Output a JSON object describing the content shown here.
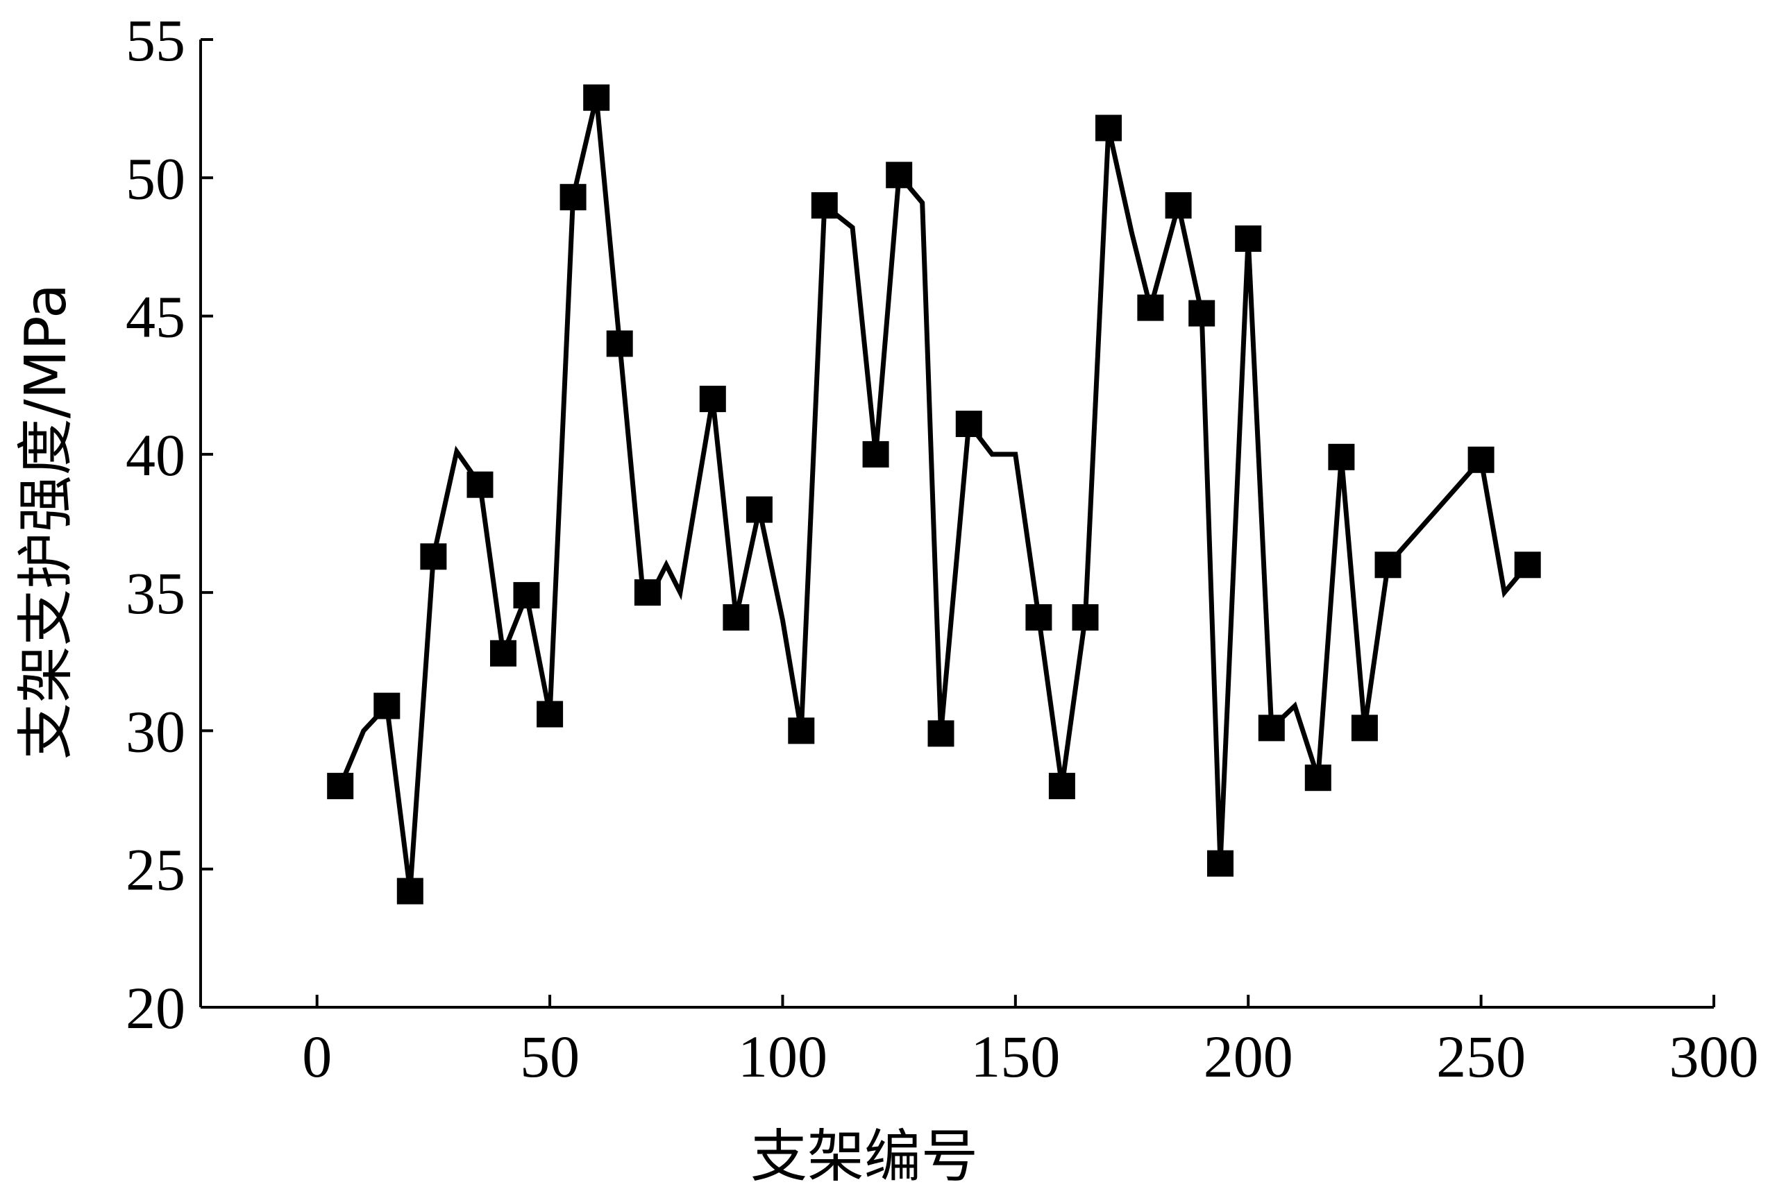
{
  "chart_data": {
    "type": "line",
    "xlabel": "支架编号",
    "ylabel": "支架支护强度/MPa",
    "xlim": [
      -25,
      300
    ],
    "ylim": [
      20,
      55
    ],
    "xticks": [
      0,
      50,
      100,
      150,
      200,
      250,
      300
    ],
    "yticks": [
      20,
      25,
      30,
      35,
      40,
      45,
      50,
      55
    ],
    "grid": false,
    "legend": "none",
    "color": "#000000",
    "series": [
      {
        "line": [
          [
            5,
            28
          ],
          [
            10,
            30
          ],
          [
            15,
            30.9
          ],
          [
            20,
            24.2
          ],
          [
            25,
            36.3
          ],
          [
            30,
            40.1
          ],
          [
            35,
            38.9
          ],
          [
            40,
            32.8
          ],
          [
            45,
            34.9
          ],
          [
            50,
            30.6
          ],
          [
            55,
            49.3
          ],
          [
            60,
            52.9
          ],
          [
            65,
            44
          ],
          [
            70,
            35
          ],
          [
            72,
            35
          ],
          [
            75,
            36
          ],
          [
            78,
            35
          ],
          [
            85,
            42
          ],
          [
            90,
            34.1
          ],
          [
            95,
            38
          ],
          [
            100,
            34
          ],
          [
            104,
            30
          ],
          [
            109,
            49
          ],
          [
            115,
            48.2
          ],
          [
            120,
            40
          ],
          [
            125,
            50.1
          ],
          [
            130,
            49.1
          ],
          [
            134,
            29.9
          ],
          [
            140,
            41.1
          ],
          [
            145,
            40
          ],
          [
            150,
            40
          ],
          [
            155,
            34.1
          ],
          [
            160,
            28
          ],
          [
            165,
            34.1
          ],
          [
            170,
            51.8
          ],
          [
            175,
            48
          ],
          [
            179,
            45.3
          ],
          [
            185,
            49
          ],
          [
            190,
            45.1
          ],
          [
            194,
            25.2
          ],
          [
            200,
            47.8
          ],
          [
            205,
            30.1
          ],
          [
            210,
            30.9
          ],
          [
            215,
            28.3
          ],
          [
            220,
            39.9
          ],
          [
            225,
            30.1
          ],
          [
            230,
            36
          ],
          [
            250,
            39.8
          ],
          [
            255,
            35
          ],
          [
            260,
            36
          ]
        ],
        "markers": [
          [
            5,
            28
          ],
          [
            15,
            30.9
          ],
          [
            20,
            24.2
          ],
          [
            25,
            36.3
          ],
          [
            35,
            38.9
          ],
          [
            40,
            32.8
          ],
          [
            45,
            34.9
          ],
          [
            50,
            30.6
          ],
          [
            55,
            49.3
          ],
          [
            60,
            52.9
          ],
          [
            65,
            44
          ],
          [
            71,
            35
          ],
          [
            85,
            42
          ],
          [
            90,
            34.1
          ],
          [
            95,
            38
          ],
          [
            104,
            30
          ],
          [
            109,
            49
          ],
          [
            120,
            40
          ],
          [
            125,
            50.1
          ],
          [
            134,
            29.9
          ],
          [
            140,
            41.1
          ],
          [
            155,
            34.1
          ],
          [
            160,
            28
          ],
          [
            165,
            34.1
          ],
          [
            170,
            51.8
          ],
          [
            179,
            45.3
          ],
          [
            185,
            49
          ],
          [
            190,
            45.1
          ],
          [
            194,
            25.2
          ],
          [
            200,
            47.8
          ],
          [
            205,
            30.1
          ],
          [
            215,
            28.3
          ],
          [
            220,
            39.9
          ],
          [
            225,
            30.1
          ],
          [
            230,
            36
          ],
          [
            250,
            39.8
          ],
          [
            260,
            36
          ]
        ]
      }
    ]
  }
}
